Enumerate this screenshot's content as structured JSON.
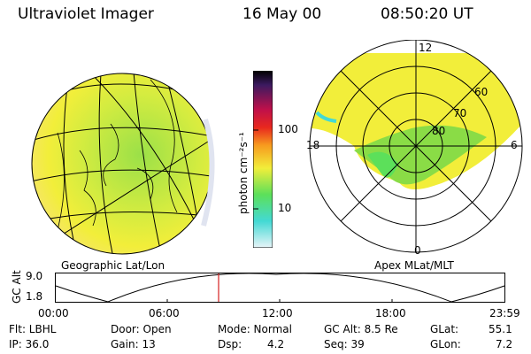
{
  "header": {
    "instrument": "Ultraviolet Imager",
    "date": "16 May 00",
    "time": "08:50:20 UT"
  },
  "colorbar": {
    "unit_label": "photon cm⁻²s⁻¹",
    "ticks": [
      "100",
      "10"
    ]
  },
  "left_panel": {
    "caption": "Geographic Lat/Lon"
  },
  "right_panel": {
    "caption": "Apex MLat/MLT",
    "mlt_labels": {
      "top": "12",
      "left": "18",
      "right": "6",
      "bottom": "0"
    },
    "lat_labels": [
      "60",
      "70",
      "80"
    ]
  },
  "orbit_plot": {
    "ylabel": "GC Alt",
    "y_ticks": [
      "9.0",
      "1.8"
    ],
    "x_ticks": [
      "00:00",
      "06:00",
      "12:00",
      "18:00",
      "23:59"
    ]
  },
  "status": {
    "row1": [
      {
        "label": "Flt: LBHL"
      },
      {
        "label": "Door: Open"
      },
      {
        "label": "Mode: Normal"
      },
      {
        "label": "GC Alt: 8.5 Re"
      },
      {
        "label": "GLat:",
        "value": "55.1"
      }
    ],
    "row2": [
      {
        "label": "IP: 36.0"
      },
      {
        "label": "Gain: 13"
      },
      {
        "label": "Dsp:",
        "value": "4.2"
      },
      {
        "label": "Seq: 39"
      },
      {
        "label": "GLon:",
        "value": "7.2"
      }
    ]
  },
  "colors": {
    "yellow": "#f2ee3a",
    "green": "#5ce05a",
    "cyan": "#43d9d4",
    "marker": "#d42020"
  }
}
